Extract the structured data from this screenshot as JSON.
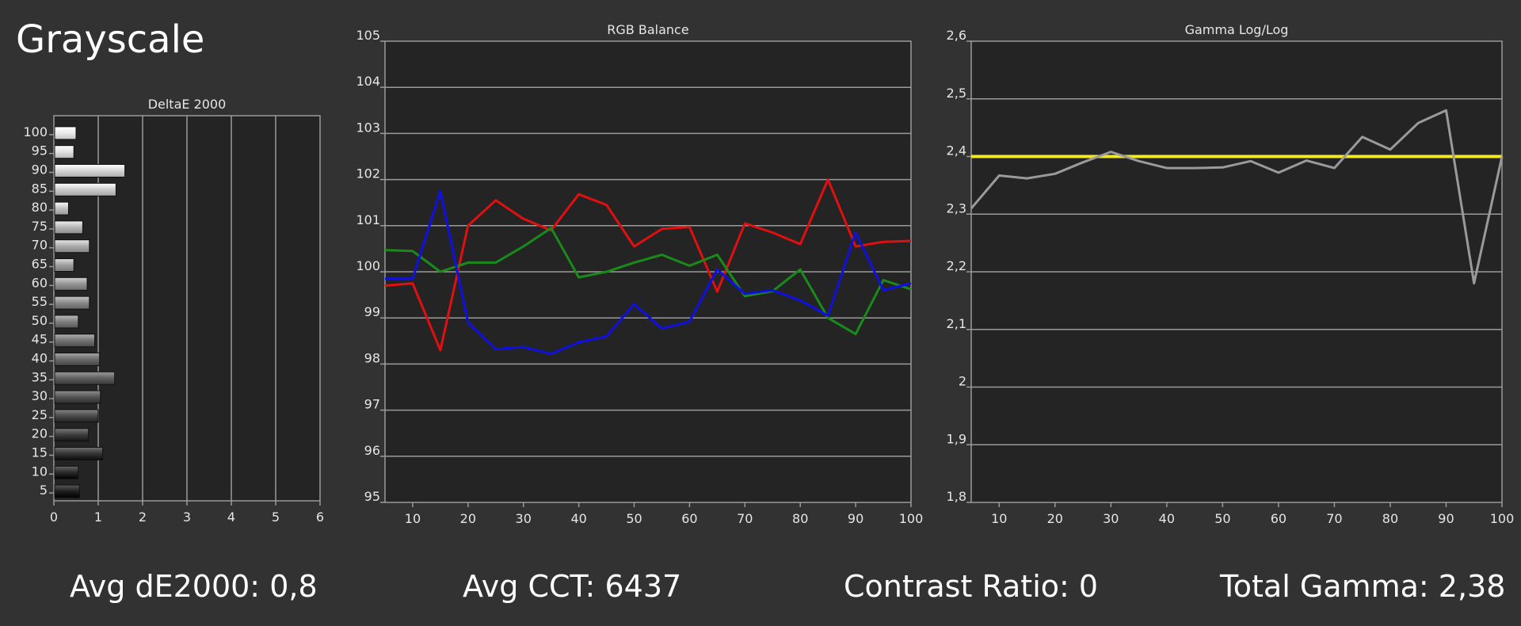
{
  "page": {
    "title": "Grayscale"
  },
  "stats": {
    "avg_de_label": "Avg dE2000:",
    "avg_de_value": "0,8",
    "avg_cct_label": "Avg CCT:",
    "avg_cct_value": "6437",
    "contrast_label": "Contrast Ratio:",
    "contrast_value": "0",
    "gamma_label": "Total Gamma:",
    "gamma_value": "2,38"
  },
  "colors": {
    "background": "#323232",
    "plot_bg": "#242424",
    "grid": "#9a9a9a",
    "red": "#e01010",
    "green": "#1a8a1a",
    "blue": "#1010e0",
    "gamma_target": "#f4e82a",
    "gamma_measured": "#9a9a9a"
  },
  "chart_data": [
    {
      "type": "bar",
      "orientation": "horizontal",
      "title": "DeltaE 2000",
      "categories": [
        "100",
        "95",
        "90",
        "85",
        "80",
        "75",
        "70",
        "65",
        "60",
        "55",
        "50",
        "45",
        "40",
        "35",
        "30",
        "25",
        "20",
        "15",
        "10",
        "5"
      ],
      "values": [
        0.5,
        0.45,
        1.6,
        1.4,
        0.33,
        0.65,
        0.8,
        0.45,
        0.75,
        0.8,
        0.55,
        0.92,
        1.03,
        1.37,
        1.05,
        1.0,
        0.78,
        1.1,
        0.55,
        0.58
      ],
      "xlim": [
        0,
        6
      ],
      "xticks": [
        "0",
        "1",
        "2",
        "3",
        "4",
        "5",
        "6"
      ],
      "grid": true
    },
    {
      "type": "line",
      "title": "RGB Balance",
      "x": [
        5,
        10,
        15,
        20,
        25,
        30,
        35,
        40,
        45,
        50,
        55,
        60,
        65,
        70,
        75,
        80,
        85,
        90,
        95,
        100
      ],
      "series": [
        {
          "color": "#e01010",
          "values": [
            99.7,
            99.75,
            98.3,
            101.0,
            101.55,
            101.15,
            100.9,
            101.68,
            101.45,
            100.55,
            100.93,
            100.97,
            99.57,
            101.05,
            100.85,
            100.6,
            102.0,
            100.55,
            100.65,
            100.67
          ]
        },
        {
          "color": "#1a8a1a",
          "values": [
            100.47,
            100.45,
            100.0,
            100.2,
            100.2,
            100.55,
            100.95,
            99.88,
            100.0,
            100.2,
            100.37,
            100.13,
            100.37,
            99.47,
            99.58,
            100.05,
            99.0,
            98.65,
            99.82,
            99.62
          ]
        },
        {
          "color": "#1010e0",
          "values": [
            99.85,
            99.85,
            101.75,
            98.9,
            98.32,
            98.37,
            98.22,
            98.47,
            98.6,
            99.3,
            98.77,
            98.92,
            100.05,
            99.52,
            99.6,
            99.38,
            99.05,
            100.85,
            99.6,
            99.75
          ]
        }
      ],
      "ylim": [
        95,
        105
      ],
      "yticks": [
        "95",
        "96",
        "97",
        "98",
        "99",
        "100",
        "101",
        "102",
        "103",
        "104",
        "105"
      ],
      "xlim": [
        5,
        100
      ],
      "xticks": [
        "10",
        "20",
        "30",
        "40",
        "50",
        "60",
        "70",
        "80",
        "90",
        "100"
      ],
      "grid": true
    },
    {
      "type": "line",
      "title": "Gamma Log/Log",
      "x": [
        5,
        10,
        15,
        20,
        25,
        30,
        35,
        40,
        45,
        50,
        55,
        60,
        65,
        70,
        75,
        80,
        85,
        90,
        95,
        100
      ],
      "series": [
        {
          "color": "#f4e82a",
          "values": [
            2.4,
            2.4,
            2.4,
            2.4,
            2.4,
            2.4,
            2.4,
            2.4,
            2.4,
            2.4,
            2.4,
            2.4,
            2.4,
            2.4,
            2.4,
            2.4,
            2.4,
            2.4,
            2.4,
            2.4
          ]
        },
        {
          "color": "#9a9a9a",
          "values": [
            2.31,
            2.367,
            2.362,
            2.37,
            2.39,
            2.408,
            2.392,
            2.38,
            2.38,
            2.381,
            2.392,
            2.372,
            2.393,
            2.38,
            2.434,
            2.412,
            2.458,
            2.48,
            2.18,
            2.4
          ]
        }
      ],
      "ylim": [
        1.8,
        2.6
      ],
      "yticks": [
        "1,8",
        "1,9",
        "2",
        "2,1",
        "2,2",
        "2,3",
        "2,4",
        "2,5",
        "2,6"
      ],
      "xlim": [
        5,
        100
      ],
      "xticks": [
        "10",
        "20",
        "30",
        "40",
        "50",
        "60",
        "70",
        "80",
        "90",
        "100"
      ],
      "grid": true
    }
  ]
}
